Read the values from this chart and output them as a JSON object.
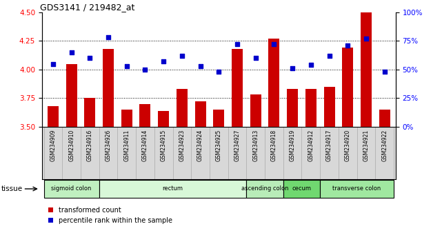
{
  "title": "GDS3141 / 219482_at",
  "samples": [
    "GSM234909",
    "GSM234910",
    "GSM234916",
    "GSM234926",
    "GSM234911",
    "GSM234914",
    "GSM234915",
    "GSM234923",
    "GSM234924",
    "GSM234925",
    "GSM234927",
    "GSM234913",
    "GSM234918",
    "GSM234919",
    "GSM234912",
    "GSM234917",
    "GSM234920",
    "GSM234921",
    "GSM234922"
  ],
  "bar_values": [
    3.68,
    4.05,
    3.75,
    4.18,
    3.65,
    3.7,
    3.64,
    3.83,
    3.72,
    3.65,
    4.18,
    3.78,
    4.27,
    3.83,
    3.83,
    3.85,
    4.19,
    4.5,
    3.65
  ],
  "dot_values": [
    55,
    65,
    60,
    78,
    53,
    50,
    57,
    62,
    53,
    48,
    72,
    60,
    72,
    51,
    54,
    62,
    71,
    77,
    48
  ],
  "bar_color": "#cc0000",
  "dot_color": "#0000cc",
  "ylim_left": [
    3.5,
    4.5
  ],
  "ylim_right": [
    0,
    100
  ],
  "yticks_left": [
    3.5,
    3.75,
    4.0,
    4.25,
    4.5
  ],
  "yticks_right": [
    0,
    25,
    50,
    75,
    100
  ],
  "ytick_labels_right": [
    "0%",
    "25%",
    "50%",
    "75%",
    "100%"
  ],
  "grid_values": [
    3.75,
    4.0,
    4.25
  ],
  "tissue_groups": [
    {
      "label": "sigmoid colon",
      "start": 0,
      "end": 3,
      "color": "#c0f0c0"
    },
    {
      "label": "rectum",
      "start": 3,
      "end": 11,
      "color": "#d8f8d8"
    },
    {
      "label": "ascending colon",
      "start": 11,
      "end": 13,
      "color": "#b8ecb8"
    },
    {
      "label": "cecum",
      "start": 13,
      "end": 15,
      "color": "#70d870"
    },
    {
      "label": "transverse colon",
      "start": 15,
      "end": 19,
      "color": "#a0e8a0"
    }
  ],
  "legend_bar_label": "transformed count",
  "legend_dot_label": "percentile rank within the sample",
  "tissue_label": "tissue",
  "n_samples": 19
}
